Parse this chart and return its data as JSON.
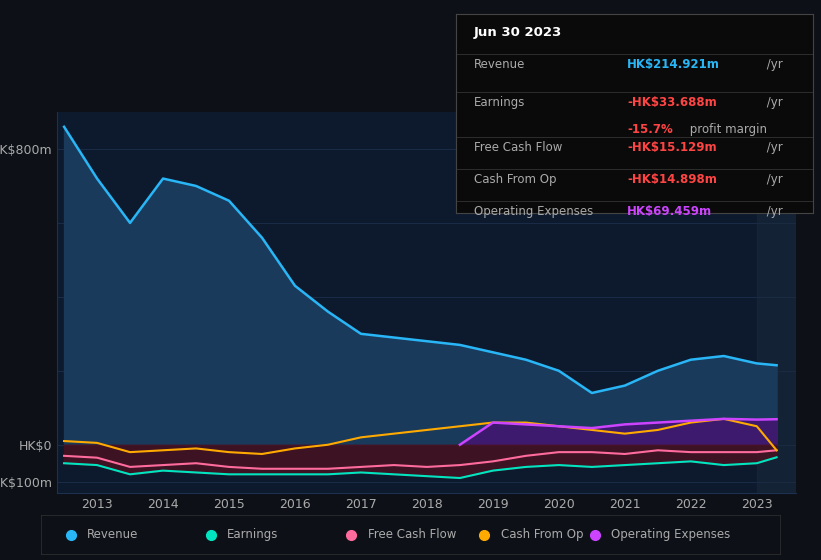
{
  "bg_color": "#0d1117",
  "plot_bg_color": "#0d1a2e",
  "grid_color": "#1e3050",
  "text_color": "#aaaaaa",
  "title_color": "#ffffff",
  "years": [
    2012.5,
    2013.0,
    2013.5,
    2014.0,
    2014.5,
    2015.0,
    2015.5,
    2016.0,
    2016.5,
    2017.0,
    2017.5,
    2018.0,
    2018.5,
    2019.0,
    2019.5,
    2020.0,
    2020.5,
    2021.0,
    2021.5,
    2022.0,
    2022.5,
    2023.0,
    2023.3
  ],
  "revenue": [
    860,
    720,
    600,
    720,
    700,
    660,
    560,
    430,
    360,
    300,
    290,
    280,
    270,
    250,
    230,
    200,
    140,
    160,
    200,
    230,
    240,
    220,
    215
  ],
  "earnings": [
    -50,
    -55,
    -80,
    -70,
    -75,
    -80,
    -80,
    -80,
    -80,
    -75,
    -80,
    -85,
    -90,
    -70,
    -60,
    -55,
    -60,
    -55,
    -50,
    -45,
    -55,
    -50,
    -34
  ],
  "free_cash_flow": [
    -30,
    -35,
    -60,
    -55,
    -50,
    -60,
    -65,
    -65,
    -65,
    -60,
    -55,
    -60,
    -55,
    -45,
    -30,
    -20,
    -20,
    -25,
    -15,
    -20,
    -20,
    -20,
    -15
  ],
  "cash_from_op": [
    10,
    5,
    -20,
    -15,
    -10,
    -20,
    -25,
    -10,
    0,
    20,
    30,
    40,
    50,
    60,
    60,
    50,
    40,
    30,
    40,
    60,
    70,
    50,
    -15
  ],
  "operating_expenses": [
    0,
    0,
    0,
    0,
    0,
    0,
    0,
    0,
    0,
    0,
    0,
    0,
    0,
    60,
    55,
    50,
    45,
    55,
    60,
    65,
    70,
    68,
    69
  ],
  "op_exp_start_year": 2018.5,
  "revenue_color": "#29b6f6",
  "revenue_fill": "#1a3a5c",
  "earnings_color": "#00e5c0",
  "free_cash_flow_color": "#ff6b9d",
  "cash_from_op_color": "#ffaa00",
  "operating_expenses_color": "#cc44ff",
  "operating_expenses_fill": "#3d1a6e",
  "earnings_fill": "#4a1020",
  "ylim_min": -130,
  "ylim_max": 900,
  "xlim_min": 2012.4,
  "xlim_max": 2023.6,
  "xticks": [
    2013,
    2014,
    2015,
    2016,
    2017,
    2018,
    2019,
    2020,
    2021,
    2022,
    2023
  ],
  "info_box": {
    "date": "Jun 30 2023",
    "revenue_label": "Revenue",
    "revenue_value": "HK$214.921m",
    "revenue_color": "#29b6f6",
    "earnings_label": "Earnings",
    "earnings_value": "-HK$33.688m",
    "earnings_color": "#ff4444",
    "margin_value": "-15.7%",
    "margin_text": " profit margin",
    "margin_color": "#ff4444",
    "fcf_label": "Free Cash Flow",
    "fcf_value": "-HK$15.129m",
    "fcf_color": "#ff4444",
    "cfop_label": "Cash From Op",
    "cfop_value": "-HK$14.898m",
    "cfop_color": "#ff4444",
    "opex_label": "Operating Expenses",
    "opex_value": "HK$69.459m",
    "opex_color": "#cc44ff",
    "yr_suffix": " /yr",
    "yr_color": "#aaaaaa"
  },
  "legend_items": [
    {
      "label": "Revenue",
      "color": "#29b6f6"
    },
    {
      "label": "Earnings",
      "color": "#00e5c0"
    },
    {
      "label": "Free Cash Flow",
      "color": "#ff6b9d"
    },
    {
      "label": "Cash From Op",
      "color": "#ffaa00"
    },
    {
      "label": "Operating Expenses",
      "color": "#cc44ff"
    }
  ]
}
